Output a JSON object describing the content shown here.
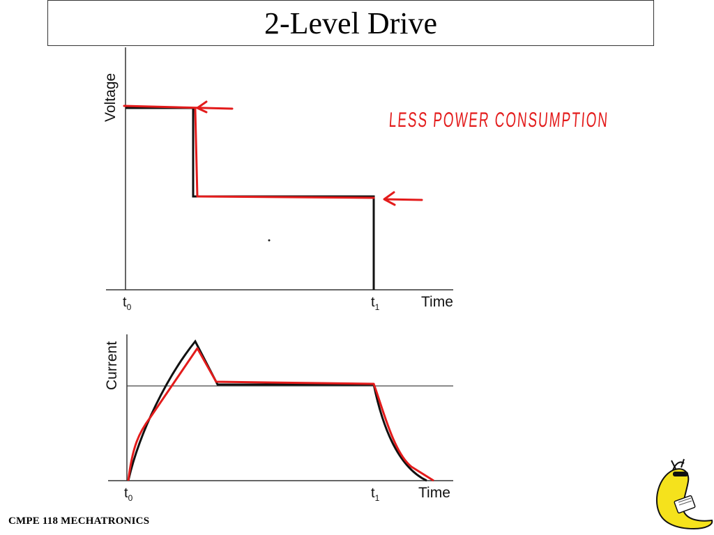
{
  "slide": {
    "title": "2-Level Drive",
    "footer": "CMPE 118 MECHATRONICS"
  },
  "voltage_plot": {
    "ylabel": "Voltage",
    "xlabel": "Time",
    "tick_t0": "t",
    "tick_t0_sub": "0",
    "tick_t1": "t",
    "tick_t1_sub": "1"
  },
  "current_plot": {
    "ylabel": "Current",
    "xlabel": "Time",
    "tick_t0": "t",
    "tick_t0_sub": "0",
    "tick_t1": "t",
    "tick_t1_sub": "1"
  },
  "annotation": {
    "text": "LESS POWER CONSUMPTION",
    "color": "#e31b1b"
  },
  "colors": {
    "ink": "#111111",
    "annotation_red": "#e31b1b"
  },
  "icons": {
    "mascot": "banana-slug-mascot-icon"
  }
}
